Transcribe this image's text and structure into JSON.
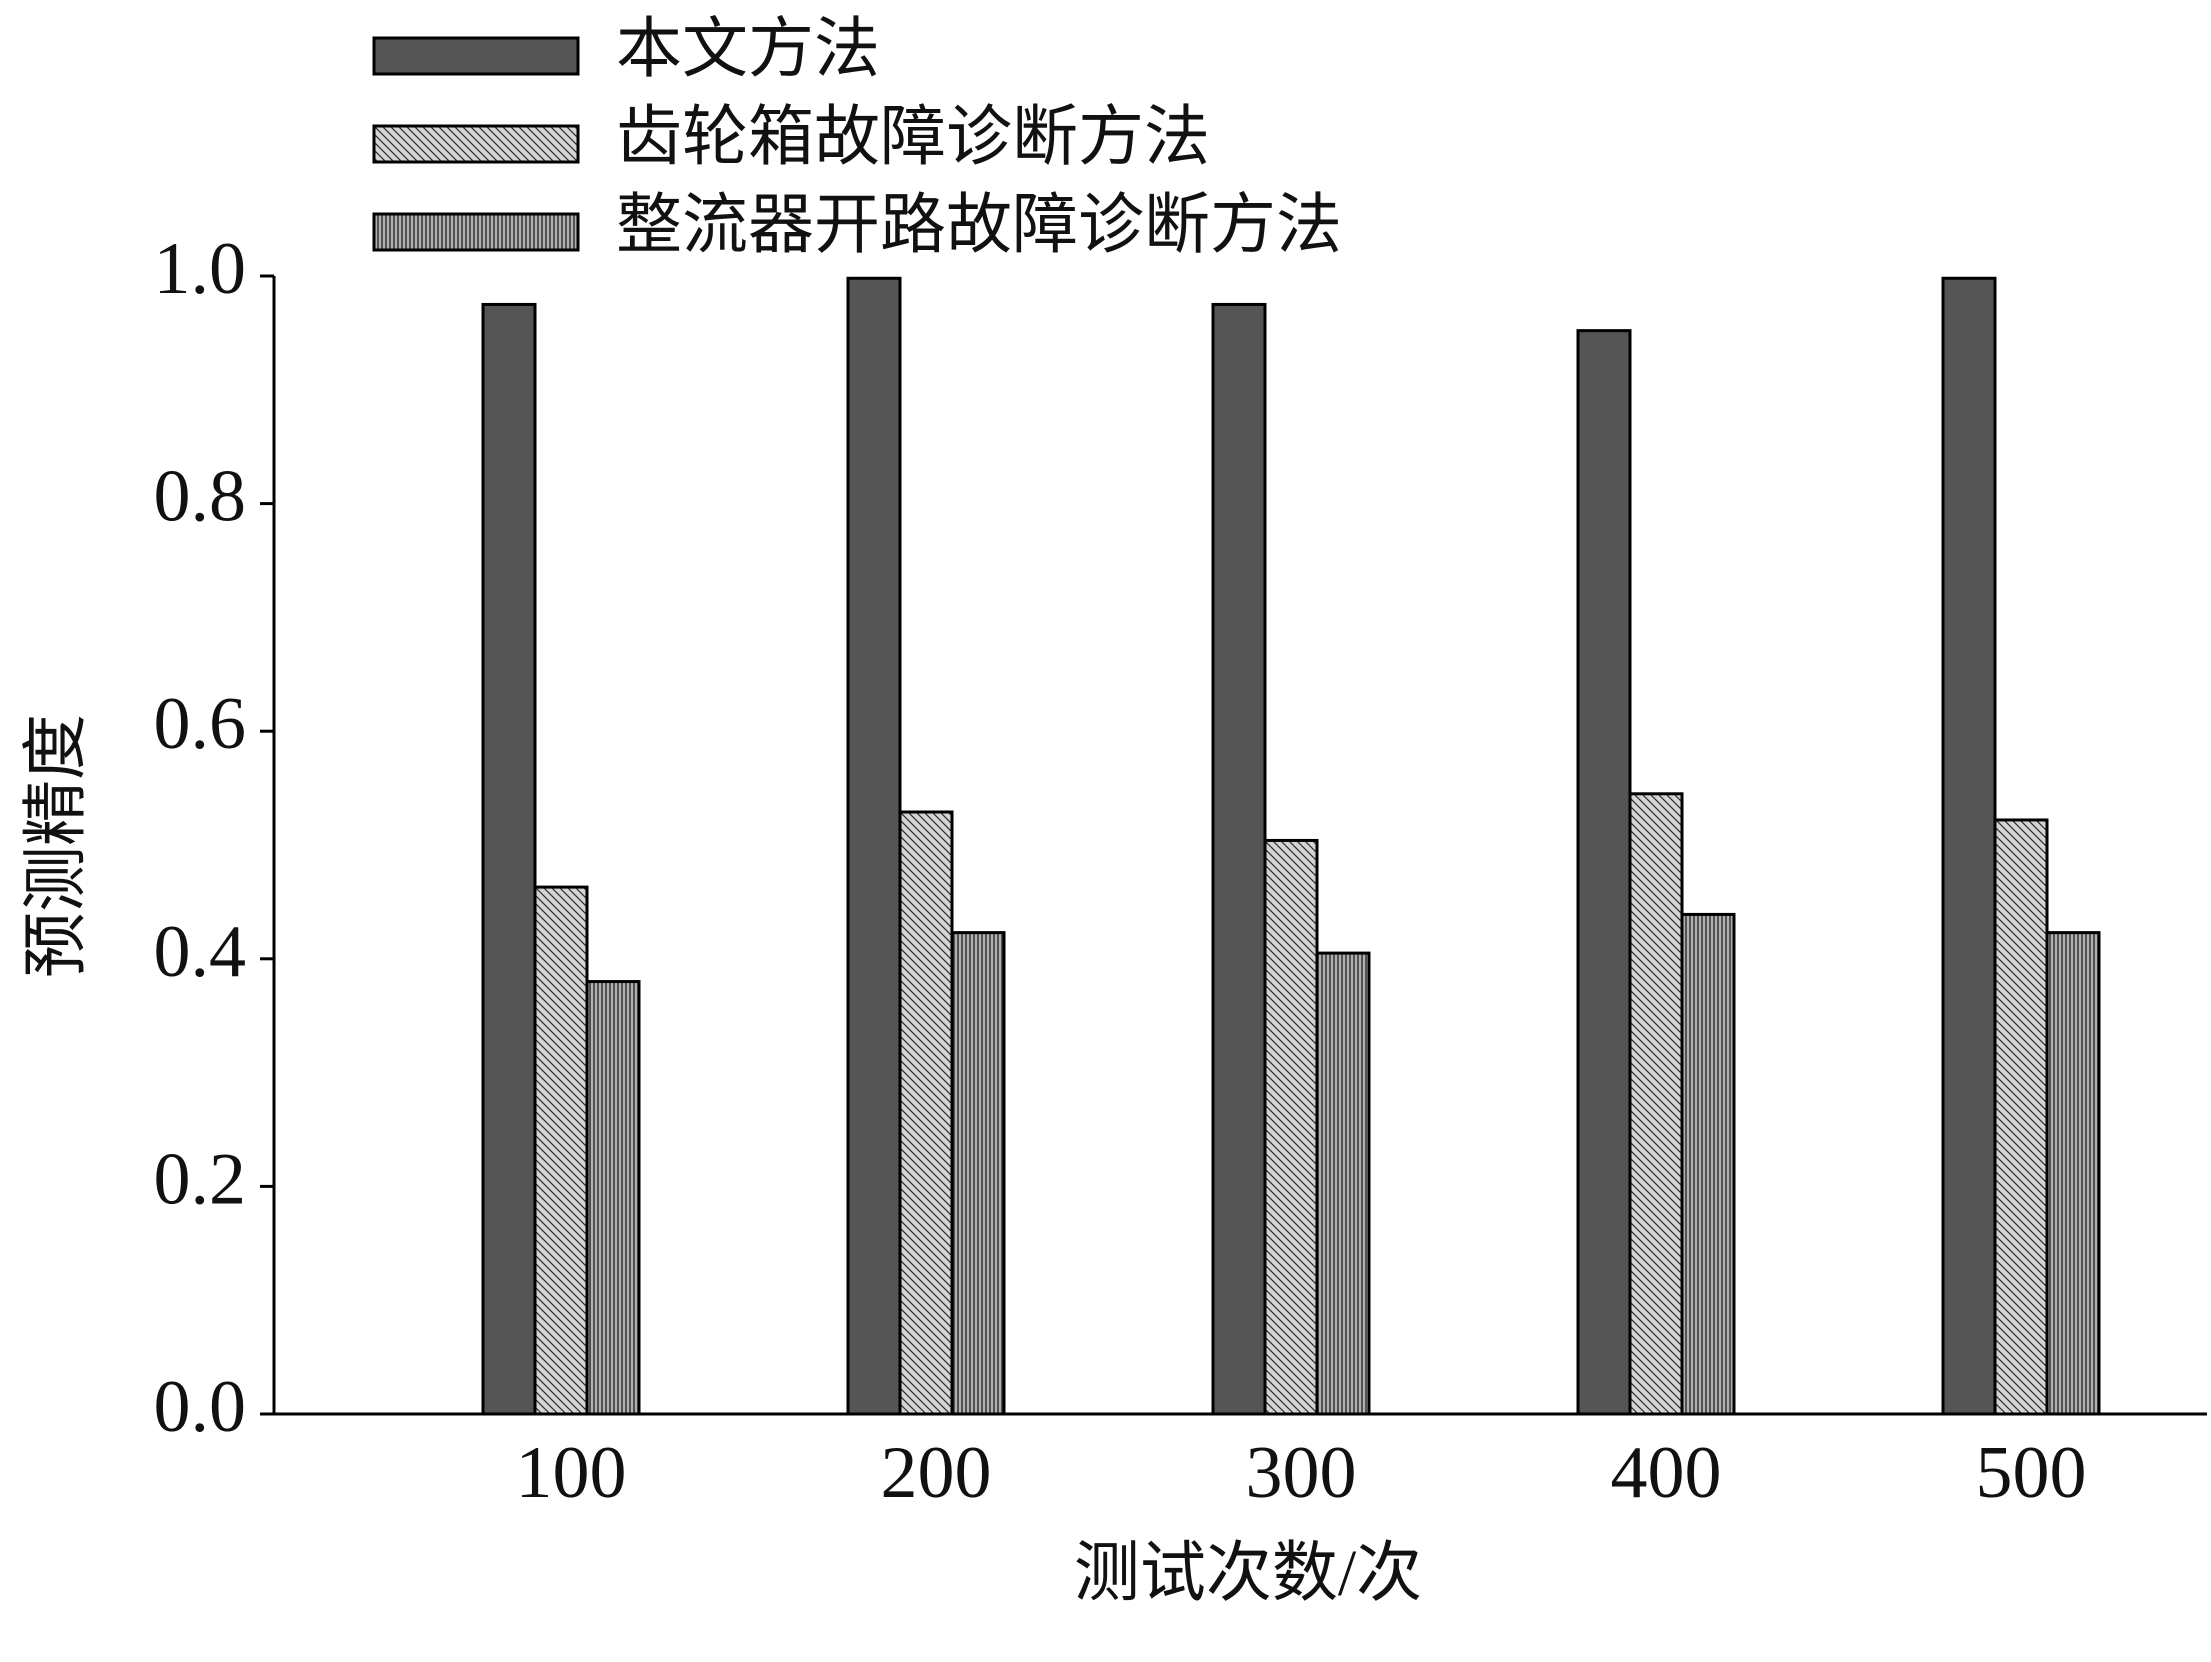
{
  "chart_data": {
    "type": "bar",
    "x_label": "测试次数/次",
    "y_label": "预测精度",
    "categories": [
      "100",
      "200",
      "300",
      "400",
      "500"
    ],
    "series": [
      {
        "name": "本文方法",
        "color": "#555555",
        "values": [
          0.975,
          0.998,
          0.975,
          0.952,
          0.998
        ]
      },
      {
        "name": "齿轮箱故障诊断方法",
        "color": "#d4d4d4",
        "values": [
          0.463,
          0.529,
          0.504,
          0.545,
          0.522
        ]
      },
      {
        "name": "整流器开路故障诊断方法",
        "color": "#b0b0b0",
        "values": [
          0.38,
          0.423,
          0.405,
          0.439,
          0.423
        ]
      }
    ],
    "ylim": [
      0,
      1.0
    ],
    "yticks": [
      {
        "value": 0,
        "label": "0.0"
      },
      {
        "value": 0.2,
        "label": "0.2"
      },
      {
        "value": 0.4,
        "label": "0.4"
      },
      {
        "value": 0.6,
        "label": "0.6"
      },
      {
        "value": 0.8,
        "label": "0.8"
      },
      {
        "value": 1.0,
        "label": "1.0"
      }
    ],
    "legend": "top-left",
    "grid": false
  }
}
